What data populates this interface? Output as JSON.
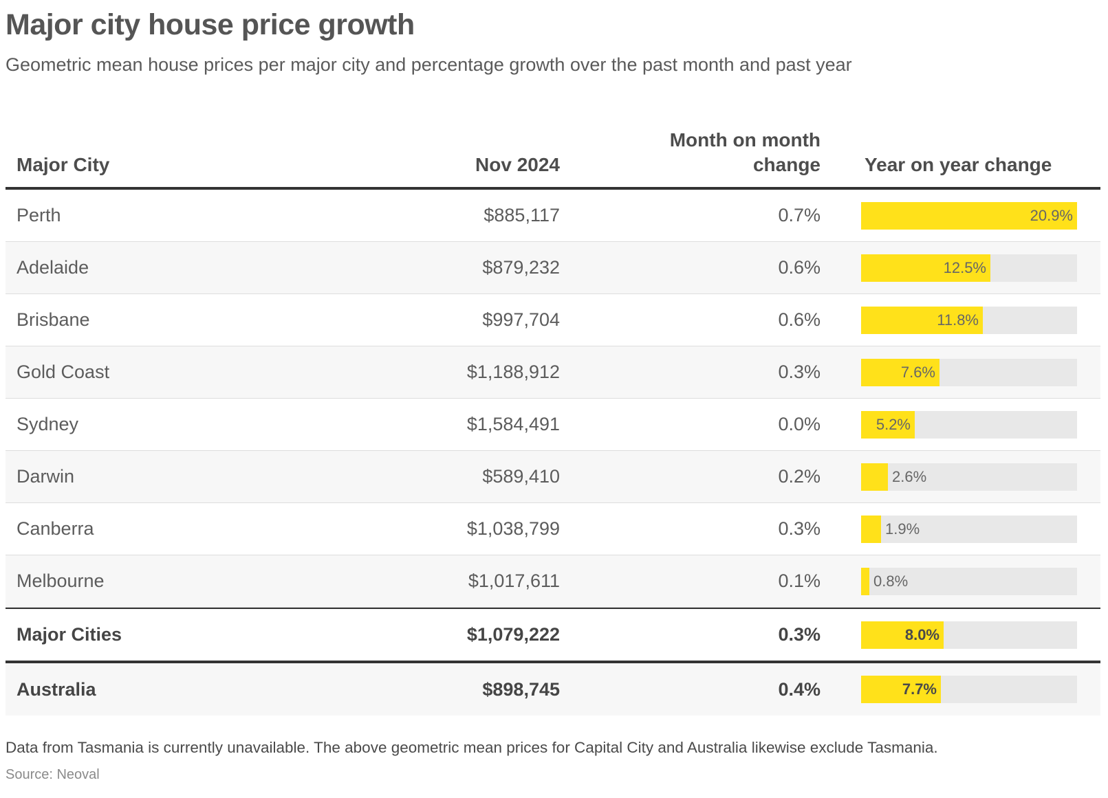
{
  "title": "Major city house price growth",
  "subtitle": "Geometric mean house prices per major city and percentage growth over the past month and past year",
  "note": "Data from Tasmania is currently unavailable. The above geometric mean prices for Capital City and Australia likewise exclude Tasmania.",
  "source": "Source: Neoval",
  "colors": {
    "bar": "#ffe11a",
    "track": "#e8e8e8",
    "rule": "#333333"
  },
  "chart_data": {
    "type": "table",
    "columns": [
      "Major City",
      "Nov 2024",
      "Month on month change",
      "Year on year change"
    ],
    "bar_max": 20.9,
    "rows": [
      {
        "city": "Perth",
        "price": "$885,117",
        "mom": "0.7%",
        "yoy": 20.9,
        "yoy_label": "20.9%"
      },
      {
        "city": "Adelaide",
        "price": "$879,232",
        "mom": "0.6%",
        "yoy": 12.5,
        "yoy_label": "12.5%"
      },
      {
        "city": "Brisbane",
        "price": "$997,704",
        "mom": "0.6%",
        "yoy": 11.8,
        "yoy_label": "11.8%"
      },
      {
        "city": "Gold Coast",
        "price": "$1,188,912",
        "mom": "0.3%",
        "yoy": 7.6,
        "yoy_label": "7.6%"
      },
      {
        "city": "Sydney",
        "price": "$1,584,491",
        "mom": "0.0%",
        "yoy": 5.2,
        "yoy_label": "5.2%"
      },
      {
        "city": "Darwin",
        "price": "$589,410",
        "mom": "0.2%",
        "yoy": 2.6,
        "yoy_label": "2.6%"
      },
      {
        "city": "Canberra",
        "price": "$1,038,799",
        "mom": "0.3%",
        "yoy": 1.9,
        "yoy_label": "1.9%"
      },
      {
        "city": "Melbourne",
        "price": "$1,017,611",
        "mom": "0.1%",
        "yoy": 0.8,
        "yoy_label": "0.8%"
      }
    ],
    "totals": [
      {
        "city": "Major Cities",
        "price": "$1,079,222",
        "mom": "0.3%",
        "yoy": 8.0,
        "yoy_label": "8.0%"
      },
      {
        "city": "Australia",
        "price": "$898,745",
        "mom": "0.4%",
        "yoy": 7.7,
        "yoy_label": "7.7%"
      }
    ]
  }
}
